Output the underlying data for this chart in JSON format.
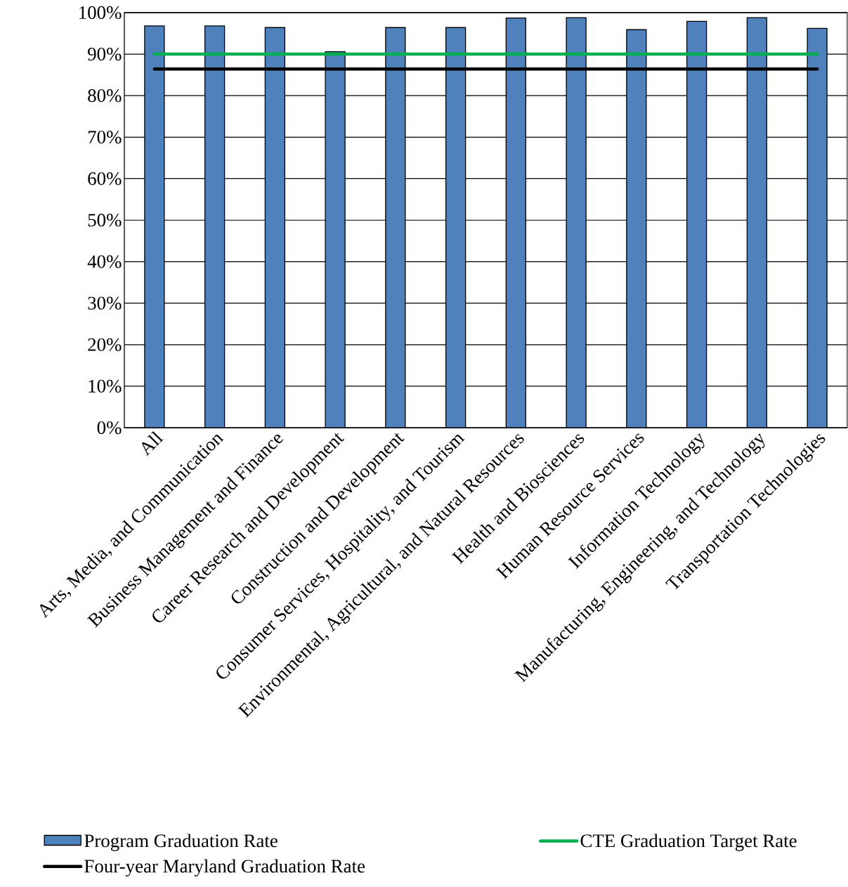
{
  "chart_data": {
    "type": "bar",
    "categories": [
      "All",
      "Arts, Media, and Communication",
      "Business Management and Finance",
      "Career Research and Development",
      "Construction and Development",
      "Consumer Services, Hospitality, and Tourism",
      "Environmental, Agricultural, and Natural Resources",
      "Health and Biosciences",
      "Human Resource Services",
      "Information Technology",
      "Manufacturing, Engineering, and Technology",
      "Transportation Technologies"
    ],
    "series": [
      {
        "name": "Program Graduation Rate",
        "color": "#4f81bd",
        "values": [
          96.8,
          96.8,
          96.4,
          90.6,
          96.4,
          96.4,
          98.7,
          98.8,
          95.9,
          97.9,
          98.8,
          96.2
        ]
      },
      {
        "name": "CTE Graduation Target Rate",
        "type": "line",
        "color": "#00b050",
        "values": [
          90,
          90,
          90,
          90,
          90,
          90,
          90,
          90,
          90,
          90,
          90,
          90
        ]
      },
      {
        "name": "Four-year Maryland Graduation Rate",
        "type": "line",
        "color": "#000000",
        "values": [
          86.4,
          86.4,
          86.4,
          86.4,
          86.4,
          86.4,
          86.4,
          86.4,
          86.4,
          86.4,
          86.4,
          86.4
        ]
      }
    ],
    "ylim": [
      0,
      100
    ],
    "yticks": [
      {
        "value": 0,
        "label": "0%"
      },
      {
        "value": 10,
        "label": "10%"
      },
      {
        "value": 20,
        "label": "20%"
      },
      {
        "value": 30,
        "label": "30%"
      },
      {
        "value": 40,
        "label": "40%"
      },
      {
        "value": 50,
        "label": "50%"
      },
      {
        "value": 60,
        "label": "60%"
      },
      {
        "value": 70,
        "label": "70%"
      },
      {
        "value": 80,
        "label": "80%"
      },
      {
        "value": 90,
        "label": "90%"
      },
      {
        "value": 100,
        "label": "100%"
      }
    ],
    "grid": "y",
    "legend": "bottom",
    "marker": "none"
  }
}
